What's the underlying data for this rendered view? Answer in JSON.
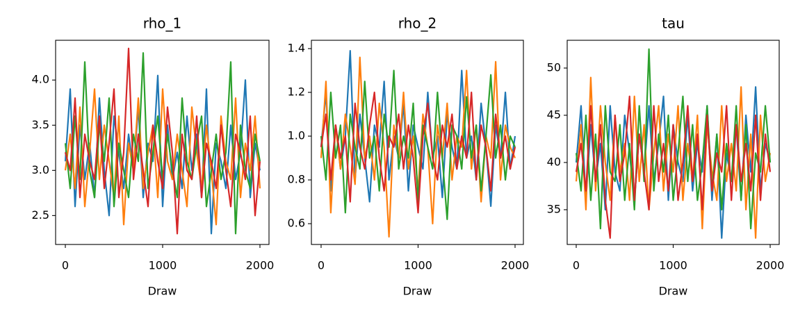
{
  "chart_data": [
    {
      "type": "line",
      "title": "rho_1",
      "x_label": "Draw",
      "x": [
        0,
        50,
        100,
        150,
        200,
        250,
        300,
        350,
        400,
        450,
        500,
        550,
        600,
        650,
        700,
        750,
        800,
        850,
        900,
        950,
        1000,
        1050,
        1100,
        1150,
        1200,
        1250,
        1300,
        1350,
        1400,
        1450,
        1500,
        1550,
        1600,
        1650,
        1700,
        1750,
        1800,
        1850,
        1900,
        1950,
        2000
      ],
      "series": [
        {
          "color": "#1f77b4",
          "values": [
            3.1,
            3.9,
            2.6,
            3.5,
            2.9,
            3.3,
            2.7,
            3.8,
            3.0,
            2.5,
            3.6,
            3.2,
            2.8,
            3.4,
            3.0,
            3.7,
            2.7,
            3.3,
            3.1,
            4.05,
            2.6,
            3.5,
            2.9,
            3.2,
            2.8,
            3.6,
            3.0,
            3.4,
            2.7,
            3.9,
            2.3,
            3.3,
            3.1,
            2.8,
            3.5,
            2.9,
            3.2,
            4.0,
            2.7,
            3.3,
            3.0
          ]
        },
        {
          "color": "#ff7f0e",
          "values": [
            3.0,
            3.4,
            2.8,
            3.7,
            2.6,
            3.2,
            3.9,
            2.9,
            3.5,
            3.1,
            2.7,
            3.6,
            2.4,
            3.3,
            3.0,
            3.8,
            2.8,
            3.2,
            3.5,
            2.7,
            3.9,
            3.1,
            2.9,
            3.4,
            3.0,
            2.6,
            3.7,
            3.2,
            2.8,
            3.5,
            3.0,
            2.4,
            3.6,
            3.1,
            2.9,
            3.8,
            2.7,
            3.3,
            3.0,
            3.6,
            2.8
          ]
        },
        {
          "color": "#2ca02c",
          "values": [
            3.3,
            2.8,
            3.6,
            2.9,
            4.2,
            3.0,
            2.7,
            3.5,
            3.1,
            3.8,
            2.6,
            3.3,
            3.0,
            2.7,
            3.4,
            3.1,
            4.3,
            2.8,
            3.2,
            3.6,
            2.9,
            3.4,
            3.0,
            2.7,
            3.8,
            3.1,
            2.9,
            3.3,
            3.6,
            2.6,
            3.0,
            3.4,
            2.9,
            3.2,
            4.2,
            2.3,
            3.5,
            3.0,
            2.8,
            3.4,
            3.1
          ]
        },
        {
          "color": "#d62728",
          "values": [
            3.2,
            3.0,
            3.8,
            2.7,
            3.4,
            3.1,
            2.9,
            3.6,
            2.8,
            3.3,
            3.9,
            2.7,
            3.2,
            4.35,
            2.9,
            3.4,
            3.0,
            2.6,
            3.5,
            3.1,
            2.8,
            3.7,
            3.2,
            2.3,
            3.4,
            3.0,
            2.9,
            3.6,
            2.7,
            3.3,
            3.1,
            2.8,
            3.5,
            3.0,
            2.6,
            3.4,
            3.2,
            2.9,
            3.6,
            2.5,
            3.1
          ]
        }
      ],
      "xlim": [
        -100,
        2093
      ],
      "ylim": [
        2.18,
        4.44
      ],
      "xticks": [
        0,
        1000,
        2000
      ],
      "yticks": [
        2.5,
        {
          "value": 3,
          "label": "3.0"
        },
        3.5,
        {
          "value": 4,
          "label": "4.0"
        }
      ]
    },
    {
      "type": "line",
      "title": "rho_2",
      "x_label": "Draw",
      "x": [
        0,
        50,
        100,
        150,
        200,
        250,
        300,
        350,
        400,
        450,
        500,
        550,
        600,
        650,
        700,
        750,
        800,
        850,
        900,
        950,
        1000,
        1050,
        1100,
        1150,
        1200,
        1250,
        1300,
        1350,
        1400,
        1450,
        1500,
        1550,
        1600,
        1650,
        1700,
        1750,
        1800,
        1850,
        1900,
        1950,
        2000
      ],
      "series": [
        {
          "color": "#1f77b4",
          "values": [
            0.95,
            1.2,
            0.75,
            1.05,
            0.85,
            1.0,
            1.39,
            0.8,
            1.1,
            0.9,
            0.7,
            1.05,
            0.95,
            1.25,
            0.8,
            1.0,
            0.9,
            1.15,
            0.75,
            1.05,
            0.95,
            0.85,
            1.2,
            0.9,
            1.0,
            0.72,
            1.1,
            0.95,
            0.85,
            1.3,
            0.9,
            1.0,
            0.8,
            1.15,
            0.95,
            0.68,
            1.05,
            0.9,
            1.2,
            0.85,
            1.0
          ]
        },
        {
          "color": "#ff7f0e",
          "values": [
            0.9,
            1.25,
            0.65,
            1.05,
            0.85,
            1.1,
            0.95,
            0.78,
            1.36,
            0.9,
            1.0,
            0.8,
            1.15,
            0.95,
            0.54,
            1.05,
            0.9,
            1.2,
            0.85,
            1.0,
            0.75,
            1.1,
            0.95,
            0.6,
            1.05,
            0.9,
            1.15,
            0.8,
            1.0,
            0.95,
            1.3,
            0.85,
            1.05,
            0.7,
            1.0,
            0.9,
            1.34,
            0.8,
            1.05,
            0.95,
            0.9
          ]
        },
        {
          "color": "#2ca02c",
          "values": [
            1.0,
            0.8,
            1.2,
            0.9,
            1.05,
            0.65,
            1.1,
            0.95,
            0.85,
            1.25,
            0.9,
            1.0,
            0.75,
            1.1,
            0.95,
            1.3,
            0.85,
            1.0,
            0.9,
            1.15,
            0.7,
            1.05,
            0.95,
            0.85,
            1.2,
            0.9,
            0.62,
            1.05,
            1.0,
            0.85,
            1.18,
            0.9,
            1.05,
            0.75,
            1.0,
            1.28,
            0.9,
            1.05,
            0.8,
            1.0,
            0.95
          ]
        },
        {
          "color": "#d62728",
          "values": [
            0.95,
            1.1,
            0.8,
            1.05,
            0.9,
            1.0,
            0.7,
            1.15,
            0.95,
            0.85,
            1.05,
            1.2,
            0.9,
            0.75,
            1.0,
            0.95,
            1.1,
            0.85,
            1.05,
            0.9,
            0.65,
            1.0,
            1.15,
            0.9,
            0.8,
            1.05,
            0.95,
            1.1,
            0.85,
            1.0,
            0.9,
            1.2,
            0.8,
            1.05,
            0.95,
            0.75,
            1.1,
            0.9,
            1.0,
            0.85,
            0.95
          ]
        }
      ],
      "xlim": [
        -100,
        2086
      ],
      "ylim": [
        0.505,
        1.438
      ],
      "xticks": [
        0,
        1000,
        2000
      ],
      "yticks": [
        0.6,
        0.8,
        {
          "value": 1,
          "label": "1.0"
        },
        1.2,
        1.4
      ]
    },
    {
      "type": "line",
      "title": "tau",
      "x_label": "Draw",
      "x": [
        0,
        50,
        100,
        150,
        200,
        250,
        300,
        350,
        400,
        450,
        500,
        550,
        600,
        650,
        700,
        750,
        800,
        850,
        900,
        950,
        1000,
        1050,
        1100,
        1150,
        1200,
        1250,
        1300,
        1350,
        1400,
        1450,
        1500,
        1550,
        1600,
        1650,
        1700,
        1750,
        1800,
        1850,
        1900,
        1950,
        2000
      ],
      "series": [
        {
          "color": "#1f77b4",
          "values": [
            40,
            46,
            36,
            44,
            38,
            42,
            35,
            46,
            39,
            37,
            45,
            41,
            36,
            43,
            39,
            46,
            38,
            42,
            47,
            36,
            44,
            40,
            38,
            45,
            37,
            42,
            39,
            46,
            36,
            43,
            32,
            41,
            38,
            44,
            36,
            45,
            39,
            48,
            37,
            42,
            40
          ]
        },
        {
          "color": "#ff7f0e",
          "values": [
            38,
            44,
            35,
            49,
            37,
            46,
            40,
            36,
            45,
            39,
            42,
            36,
            47,
            38,
            44,
            35,
            41,
            46,
            37,
            43,
            39,
            46,
            36,
            42,
            38,
            45,
            33,
            44,
            39,
            36,
            46,
            38,
            42,
            37,
            48,
            35,
            43,
            32,
            45,
            38,
            41
          ]
        },
        {
          "color": "#2ca02c",
          "values": [
            41,
            37,
            45,
            36,
            43,
            33,
            46,
            39,
            38,
            44,
            36,
            42,
            35,
            46,
            38,
            52,
            37,
            43,
            39,
            45,
            36,
            41,
            47,
            38,
            44,
            36,
            40,
            46,
            37,
            43,
            35,
            42,
            38,
            46,
            36,
            44,
            33,
            41,
            39,
            46,
            40
          ]
        },
        {
          "color": "#d62728",
          "values": [
            39,
            42,
            37,
            46,
            38,
            44,
            36,
            32,
            45,
            38,
            41,
            47,
            36,
            43,
            39,
            35,
            46,
            38,
            42,
            37,
            44,
            36,
            40,
            46,
            38,
            43,
            35,
            45,
            37,
            41,
            39,
            46,
            36,
            44,
            38,
            42,
            37,
            45,
            36,
            43,
            39
          ]
        }
      ],
      "xlim": [
        -93,
        2093
      ],
      "ylim": [
        31.32,
        52.94
      ],
      "xticks": [
        0,
        1000,
        2000
      ],
      "yticks": [
        35,
        40,
        45,
        50
      ]
    }
  ]
}
